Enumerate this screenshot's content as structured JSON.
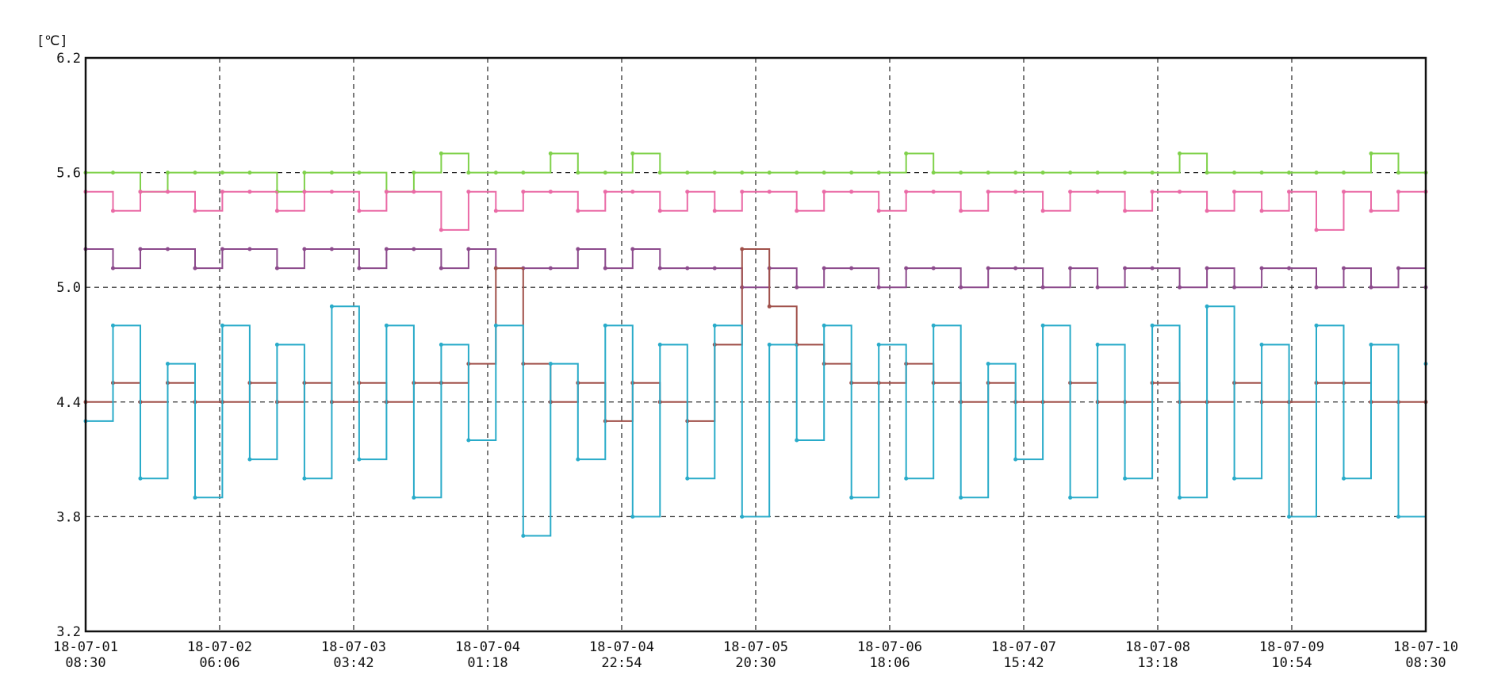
{
  "chart_data": {
    "type": "line",
    "title": "",
    "xlabel": "",
    "ylabel": "",
    "unit": "[℃]",
    "ylim": [
      3.2,
      6.2
    ],
    "yticks": [
      "6.2",
      "5.6",
      "5.0",
      "4.4",
      "3.8",
      "3.2"
    ],
    "x_range": [
      "18-07-01 08:30",
      "18-07-10 08:30"
    ],
    "x_ticks": [
      {
        "date": "18-07-01",
        "time": "08:30"
      },
      {
        "date": "18-07-02",
        "time": "06:06"
      },
      {
        "date": "18-07-03",
        "time": "03:42"
      },
      {
        "date": "18-07-04",
        "time": "01:18"
      },
      {
        "date": "18-07-04",
        "time": "22:54"
      },
      {
        "date": "18-07-05",
        "time": "20:30"
      },
      {
        "date": "18-07-06",
        "time": "18:06"
      },
      {
        "date": "18-07-07",
        "time": "15:42"
      },
      {
        "date": "18-07-08",
        "time": "13:18"
      },
      {
        "date": "18-07-09",
        "time": "10:54"
      },
      {
        "date": "18-07-10",
        "time": "08:30"
      }
    ],
    "grid": "dashed",
    "legend": "none",
    "series": [
      {
        "color": "#7fd14a",
        "values": [
          5.6,
          5.6,
          5.5,
          5.6,
          5.6,
          5.6,
          5.6,
          5.5,
          5.6,
          5.6,
          5.6,
          5.5,
          5.6,
          5.7,
          5.6,
          5.6,
          5.6,
          5.7,
          5.6,
          5.6,
          5.7,
          5.6,
          5.6,
          5.6,
          5.6,
          5.6,
          5.6,
          5.6,
          5.6,
          5.6,
          5.7,
          5.6,
          5.6,
          5.6,
          5.6,
          5.6,
          5.6,
          5.6,
          5.6,
          5.6,
          5.7,
          5.6,
          5.6,
          5.6,
          5.6,
          5.6,
          5.6,
          5.7,
          5.6,
          5.6
        ]
      },
      {
        "color": "#ea6aa6",
        "values": [
          5.5,
          5.4,
          5.5,
          5.5,
          5.4,
          5.5,
          5.5,
          5.4,
          5.5,
          5.5,
          5.4,
          5.5,
          5.5,
          5.3,
          5.5,
          5.4,
          5.5,
          5.5,
          5.4,
          5.5,
          5.5,
          5.4,
          5.5,
          5.4,
          5.5,
          5.5,
          5.4,
          5.5,
          5.5,
          5.4,
          5.5,
          5.5,
          5.4,
          5.5,
          5.5,
          5.4,
          5.5,
          5.5,
          5.4,
          5.5,
          5.5,
          5.4,
          5.5,
          5.4,
          5.5,
          5.3,
          5.5,
          5.4,
          5.5,
          5.5
        ]
      },
      {
        "color": "#8c4a8c",
        "values": [
          5.2,
          5.1,
          5.2,
          5.2,
          5.1,
          5.2,
          5.2,
          5.1,
          5.2,
          5.2,
          5.1,
          5.2,
          5.2,
          5.1,
          5.2,
          5.1,
          5.1,
          5.1,
          5.2,
          5.1,
          5.2,
          5.1,
          5.1,
          5.1,
          5.0,
          5.1,
          5.0,
          5.1,
          5.1,
          5.0,
          5.1,
          5.1,
          5.0,
          5.1,
          5.1,
          5.0,
          5.1,
          5.0,
          5.1,
          5.1,
          5.0,
          5.1,
          5.0,
          5.1,
          5.1,
          5.0,
          5.1,
          5.0,
          5.1,
          5.0
        ]
      },
      {
        "color": "#a0504a",
        "values": [
          4.4,
          4.5,
          4.4,
          4.5,
          4.4,
          4.4,
          4.5,
          4.4,
          4.5,
          4.4,
          4.5,
          4.4,
          4.5,
          4.5,
          4.6,
          5.1,
          4.6,
          4.4,
          4.5,
          4.3,
          4.5,
          4.4,
          4.3,
          4.7,
          5.2,
          4.9,
          4.7,
          4.6,
          4.5,
          4.5,
          4.6,
          4.5,
          4.4,
          4.5,
          4.4,
          4.4,
          4.5,
          4.4,
          4.4,
          4.5,
          4.4,
          4.4,
          4.5,
          4.4,
          4.4,
          4.5,
          4.5,
          4.4,
          4.4,
          4.4
        ]
      },
      {
        "color": "#29abc9",
        "values": [
          4.3,
          4.8,
          4.0,
          4.6,
          3.9,
          4.8,
          4.1,
          4.7,
          4.0,
          4.9,
          4.1,
          4.8,
          3.9,
          4.7,
          4.2,
          4.8,
          3.7,
          4.6,
          4.1,
          4.8,
          3.8,
          4.7,
          4.0,
          4.8,
          3.8,
          4.7,
          4.2,
          4.8,
          3.9,
          4.7,
          4.0,
          4.8,
          3.9,
          4.6,
          4.1,
          4.8,
          3.9,
          4.7,
          4.0,
          4.8,
          3.9,
          4.9,
          4.0,
          4.7,
          3.8,
          4.8,
          4.0,
          4.7,
          3.8,
          4.6
        ]
      }
    ]
  }
}
